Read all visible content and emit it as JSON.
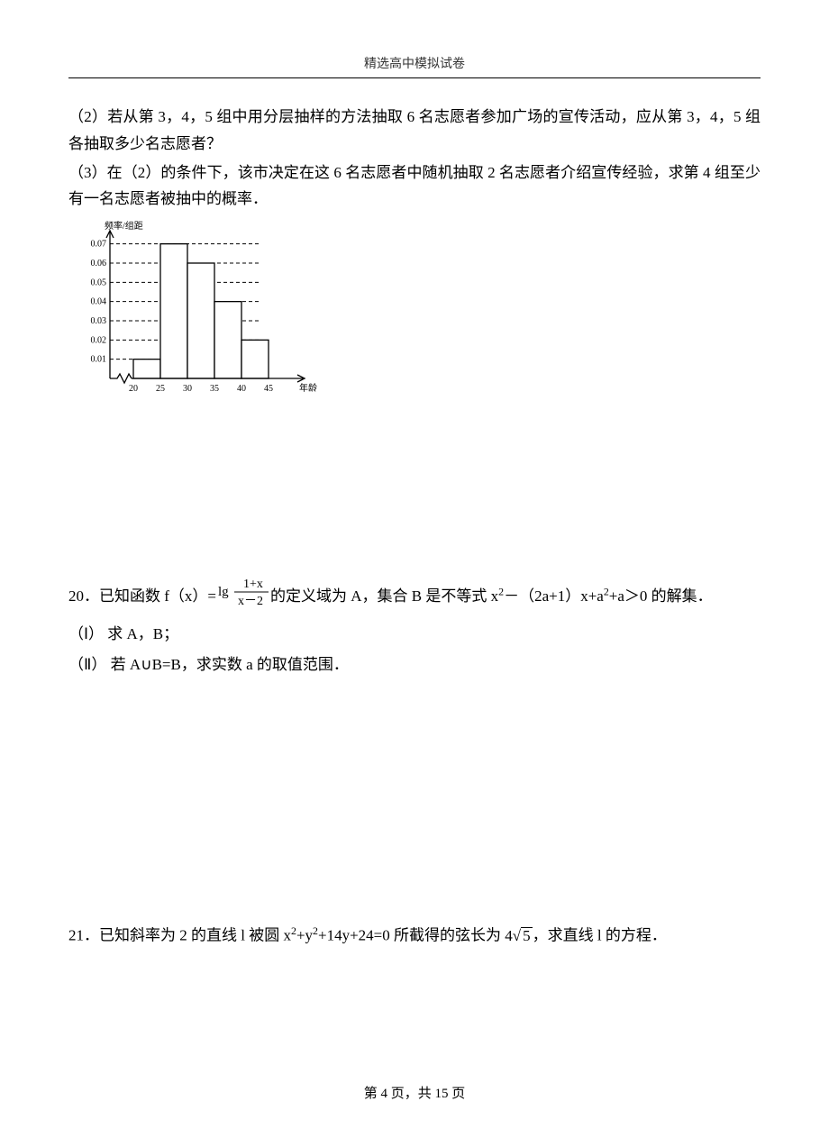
{
  "header": {
    "title": "精选高中模拟试卷"
  },
  "q_part2": "（2）若从第 3，4，5 组中用分层抽样的方法抽取 6 名志愿者参加广场的宣传活动，应从第 3，4，5 组各抽取多少名志愿者？",
  "q_part3": "（3）在（2）的条件下，该市决定在这 6 名志愿者中随机抽取 2 名志愿者介绍宣传经验，求第 4 组至少有一名志愿者被抽中的概率．",
  "histogram": {
    "type": "histogram",
    "y_axis_label": "频率/组距",
    "x_axis_label": "年龄",
    "x_ticks": [
      "20",
      "25",
      "30",
      "35",
      "40",
      "45"
    ],
    "y_ticks": [
      "0.01",
      "0.02",
      "0.03",
      "0.04",
      "0.05",
      "0.06",
      "0.07"
    ],
    "y_tick_step": 0.01,
    "ylim": [
      0,
      0.075
    ],
    "bars": [
      {
        "bin": "20-25",
        "value": 0.01
      },
      {
        "bin": "25-30",
        "value": 0.07
      },
      {
        "bin": "30-35",
        "value": 0.06
      },
      {
        "bin": "35-40",
        "value": 0.04
      },
      {
        "bin": "40-45",
        "value": 0.02
      }
    ],
    "colors": {
      "axis": "#000000",
      "bar_border": "#000000",
      "bar_fill": "#ffffff",
      "grid": "#000000",
      "text": "#000000",
      "background": "#ffffff"
    },
    "dash_pattern": "4,3",
    "line_width": 1,
    "label_fontsize": 10
  },
  "q20": {
    "line1_prefix": "20．已知函数 f（x）=",
    "frac_lg": "lg",
    "frac_num": "1+x",
    "frac_den": "x－2",
    "line1_suffix": "的定义域为 A，集合 B 是不等式 x",
    "sup2": "2",
    "line1_tail": "－（2a+1）x+a",
    "line1_tail2": "+a＞0 的解集．",
    "line2": "（Ⅰ） 求 A，B；",
    "line3": "（Ⅱ） 若 A∪B=B，求实数 a 的取值范围．"
  },
  "q21": {
    "prefix": "21．已知斜率为 2 的直线 l 被圆 x",
    "sup2a": "2",
    "mid1": "+y",
    "sup2b": "2",
    "mid2": "+14y+24=0 所截得的弦长为",
    "sqrt_coef": "4",
    "sqrt_rad": "5",
    "suffix": "，求直线 l 的方程．"
  },
  "footer": {
    "text_prefix": "第 ",
    "page": "4",
    "text_mid": " 页，共 ",
    "total": "15",
    "text_suffix": " 页"
  }
}
